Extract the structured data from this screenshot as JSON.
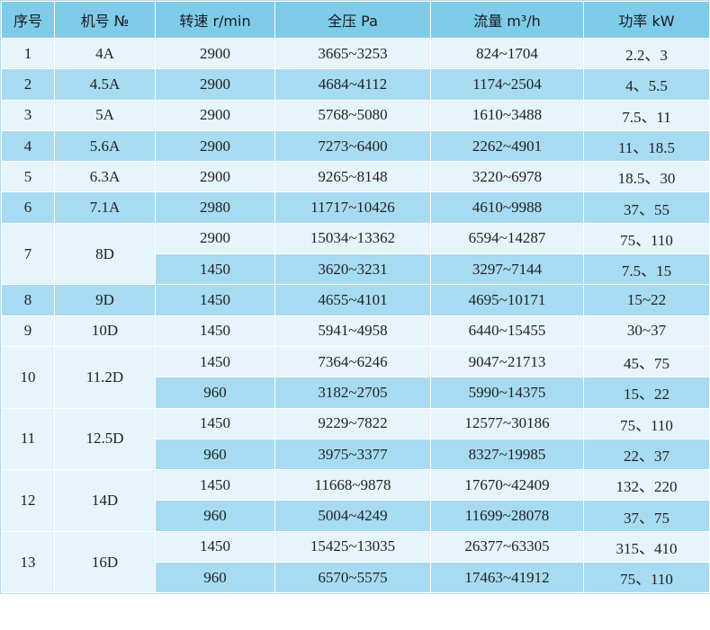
{
  "table": {
    "header": [
      "序号",
      "机号 №",
      "转速 r/min",
      "全压 Pa",
      "流量 m³/h",
      "功率 kW"
    ],
    "rows": [
      {
        "index": "1",
        "model": "4A",
        "subrows": [
          [
            "2900",
            "3665~3253",
            "824~1704",
            "2.2、3"
          ]
        ]
      },
      {
        "index": "2",
        "model": "4.5A",
        "subrows": [
          [
            "2900",
            "4684~4112",
            "1174~2504",
            "4、5.5"
          ]
        ]
      },
      {
        "index": "3",
        "model": "5A",
        "subrows": [
          [
            "2900",
            "5768~5080",
            "1610~3488",
            "7.5、11"
          ]
        ]
      },
      {
        "index": "4",
        "model": "5.6A",
        "subrows": [
          [
            "2900",
            "7273~6400",
            "2262~4901",
            "11、18.5"
          ]
        ]
      },
      {
        "index": "5",
        "model": "6.3A",
        "subrows": [
          [
            "2900",
            "9265~8148",
            "3220~6978",
            "18.5、30"
          ]
        ]
      },
      {
        "index": "6",
        "model": "7.1A",
        "subrows": [
          [
            "2980",
            "11717~10426",
            "4610~9988",
            "37、55"
          ]
        ]
      },
      {
        "index": "7",
        "model": "8D",
        "subrows": [
          [
            "2900",
            "15034~13362",
            "6594~14287",
            "75、110"
          ],
          [
            "1450",
            "3620~3231",
            "3297~7144",
            "7.5、15"
          ]
        ]
      },
      {
        "index": "8",
        "model": "9D",
        "subrows": [
          [
            "1450",
            "4655~4101",
            "4695~10171",
            "15~22"
          ]
        ]
      },
      {
        "index": "9",
        "model": "10D",
        "subrows": [
          [
            "1450",
            "5941~4958",
            "6440~15455",
            "30~37"
          ]
        ]
      },
      {
        "index": "10",
        "model": "11.2D",
        "subrows": [
          [
            "1450",
            "7364~6246",
            "9047~21713",
            "45、75"
          ],
          [
            "960",
            "3182~2705",
            "5990~14375",
            "15、22"
          ]
        ]
      },
      {
        "index": "11",
        "model": "12.5D",
        "subrows": [
          [
            "1450",
            "9229~7822",
            "12577~30186",
            "75、110"
          ],
          [
            "960",
            "3975~3377",
            "8327~19985",
            "22、37"
          ]
        ]
      },
      {
        "index": "12",
        "model": "14D",
        "subrows": [
          [
            "1450",
            "11668~9878",
            "17670~42409",
            "132、220"
          ],
          [
            "960",
            "5004~4249",
            "11699~28078",
            "37、75"
          ]
        ]
      },
      {
        "index": "13",
        "model": "16D",
        "subrows": [
          [
            "1450",
            "15425~13035",
            "26377~63305",
            "315、410"
          ],
          [
            "960",
            "6570~5575",
            "17463~41912",
            "75、110"
          ]
        ]
      }
    ]
  }
}
